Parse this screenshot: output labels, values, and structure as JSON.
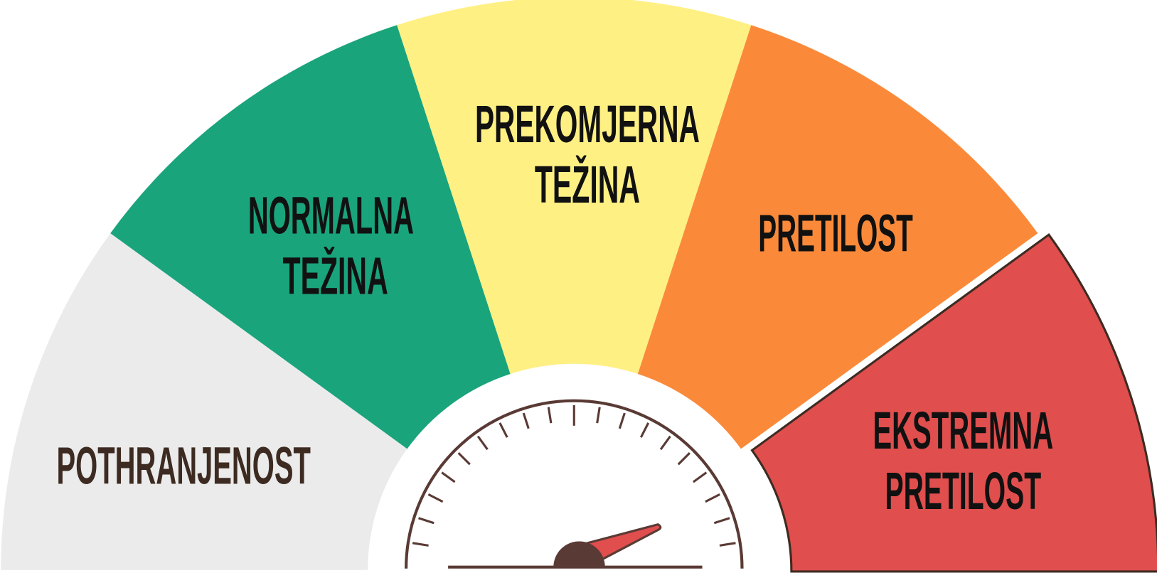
{
  "segments": [
    {
      "lines": [
        "POTHRANJENOST"
      ]
    },
    {
      "lines": [
        "NORMALNA",
        "TEŽINA"
      ]
    },
    {
      "lines": [
        "PREKOMJERNA",
        "TEŽINA"
      ]
    },
    {
      "lines": [
        "PRETILOST"
      ]
    },
    {
      "lines": [
        "EKSTREMNA",
        "PRETILOST"
      ]
    }
  ]
}
